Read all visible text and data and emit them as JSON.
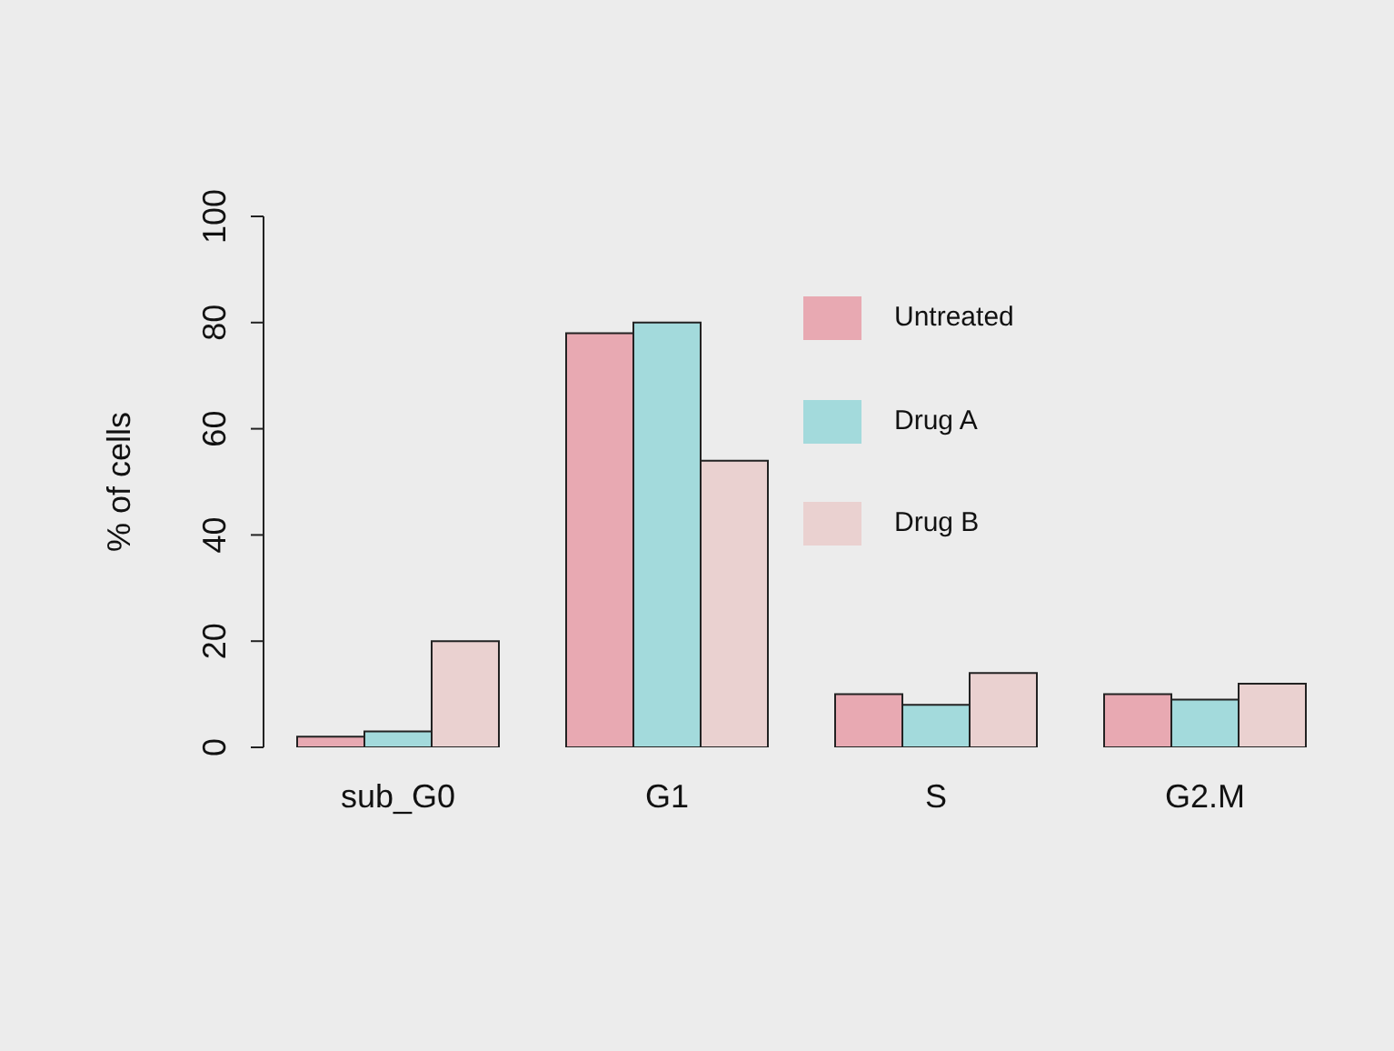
{
  "chart_data": {
    "type": "bar",
    "ylabel": "% of cells",
    "categories": [
      "sub_G0",
      "G1",
      "S",
      "G2.M"
    ],
    "series": [
      {
        "name": "Untreated",
        "color": "#e8a9b2",
        "values": [
          2,
          78,
          10,
          10
        ]
      },
      {
        "name": "Drug A",
        "color": "#a3dadc",
        "values": [
          3,
          80,
          8,
          9
        ]
      },
      {
        "name": "Drug B",
        "color": "#ead1d0",
        "values": [
          20,
          54,
          14,
          12
        ]
      }
    ],
    "ylim": [
      0,
      100
    ],
    "yticks": [
      0,
      20,
      40,
      60,
      80,
      100
    ],
    "grid": false,
    "legend": "top right"
  }
}
